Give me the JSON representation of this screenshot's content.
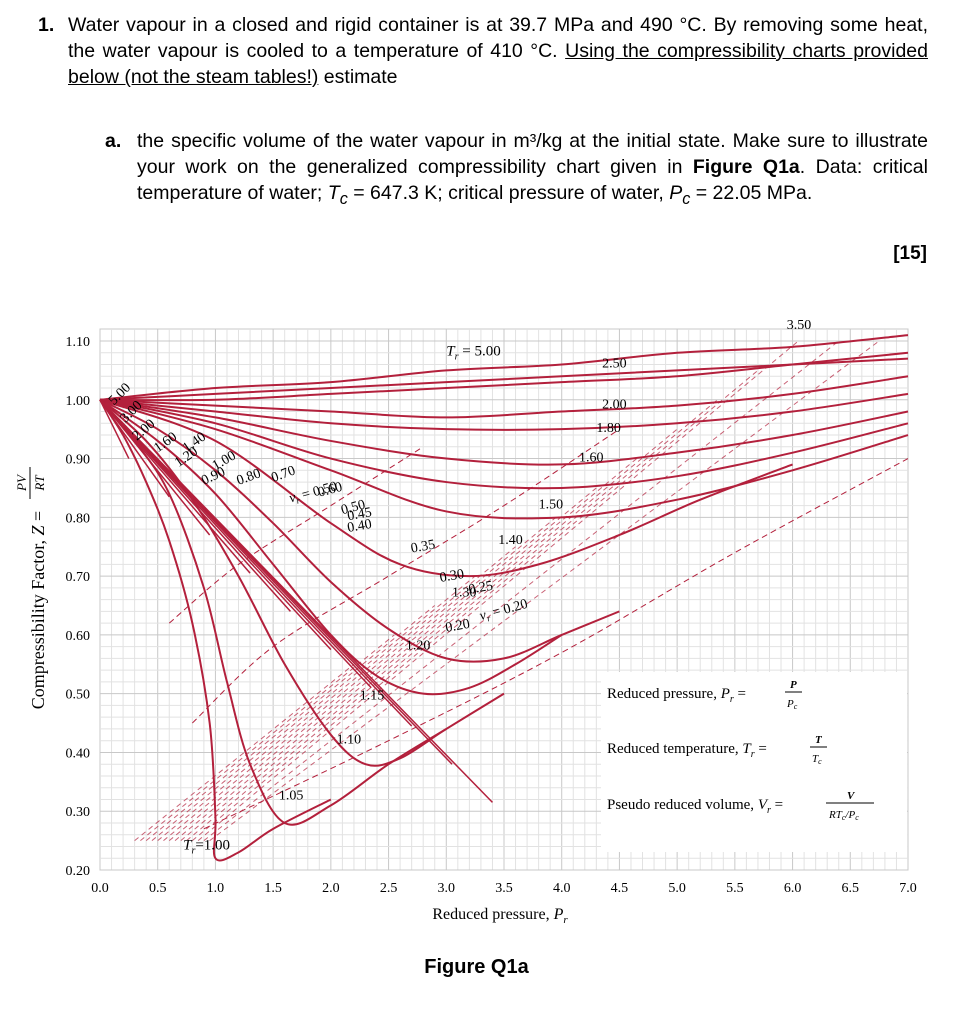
{
  "question": {
    "number": "1.",
    "text_a": "Water vapour in a closed and rigid container is at 39.7 MPa and 490 °C. By removing some heat, the water vapour is cooled to a temperature of 410 °C. ",
    "underlined": "Using the compressibility charts provided below (not the steam tables!)",
    "text_b": " estimate"
  },
  "subquestion": {
    "label": "a.",
    "text_1": "the specific volume of the water vapour in m³/kg at the initial state. Make sure to illustrate your work on the generalized compressibility chart given in ",
    "bold_ref": "Figure Q1a",
    "text_2": ". Data: critical temperature of water; ",
    "tc_symbol": "T",
    "tc_sub": "c",
    "tc_value": " = 647.3 K; critical pressure of water, ",
    "pc_symbol": "P",
    "pc_sub": "c",
    "pc_value": " = 22.05 MPa."
  },
  "marks": "[15]",
  "figure_caption": "Figure Q1a",
  "colors": {
    "curve": "#b3203c",
    "grid": "#c8c8c8",
    "grid_minor": "#e2e2e2",
    "text": "#000000"
  },
  "chart_data": {
    "type": "line",
    "xlabel": "Reduced pressure, Pr",
    "ylabel": "Compressibility Factor, Z = PV/RT",
    "xlim": [
      0.0,
      7.0
    ],
    "ylim": [
      0.2,
      1.1
    ],
    "xticks": [
      "0.0",
      "0.5",
      "1.0",
      "1.5",
      "2.0",
      "2.5",
      "3.0",
      "3.5",
      "4.0",
      "4.5",
      "5.0",
      "5.5",
      "6.0",
      "6.5",
      "7.0"
    ],
    "yticks": [
      "0.20",
      "0.30",
      "0.40",
      "0.50",
      "0.60",
      "0.70",
      "0.80",
      "0.90",
      "1.00",
      "1.10"
    ],
    "isotherm_series": [
      {
        "name": "Tr = 1.00",
        "x": [
          0,
          0.2,
          0.4,
          0.6,
          0.8,
          0.95,
          1.0,
          1.0,
          1.2,
          1.5,
          2.0
        ],
        "y": [
          1.0,
          0.94,
          0.86,
          0.76,
          0.62,
          0.45,
          0.29,
          0.22,
          0.23,
          0.27,
          0.32
        ]
      },
      {
        "name": "1.05",
        "x": [
          0,
          0.3,
          0.6,
          0.9,
          1.1,
          1.3,
          1.6,
          2.0,
          2.5,
          3.0
        ],
        "y": [
          1.0,
          0.93,
          0.84,
          0.68,
          0.52,
          0.38,
          0.28,
          0.31,
          0.38,
          0.44
        ]
      },
      {
        "name": "1.10",
        "x": [
          0,
          0.4,
          0.8,
          1.2,
          1.6,
          2.0,
          2.3,
          2.6,
          3.0,
          3.5
        ],
        "y": [
          1.0,
          0.93,
          0.83,
          0.7,
          0.55,
          0.43,
          0.38,
          0.39,
          0.44,
          0.5
        ]
      },
      {
        "name": "1.15",
        "x": [
          0,
          0.5,
          1.0,
          1.5,
          2.0,
          2.4,
          2.8,
          3.2,
          3.6,
          4.0
        ],
        "y": [
          1.0,
          0.93,
          0.84,
          0.72,
          0.6,
          0.53,
          0.5,
          0.51,
          0.55,
          0.6
        ]
      },
      {
        "name": "1.20",
        "x": [
          0,
          0.5,
          1.0,
          1.5,
          2.0,
          2.5,
          3.0,
          3.5,
          4.0,
          4.5
        ],
        "y": [
          1.0,
          0.95,
          0.88,
          0.79,
          0.69,
          0.61,
          0.56,
          0.56,
          0.6,
          0.64
        ]
      },
      {
        "name": "1.30",
        "x": [
          0,
          1.0,
          2.0,
          2.6,
          3.2,
          3.8,
          4.5,
          5.2,
          6.0
        ],
        "y": [
          1.0,
          0.93,
          0.79,
          0.72,
          0.7,
          0.72,
          0.77,
          0.83,
          0.89
        ]
      },
      {
        "name": "1.40",
        "x": [
          0,
          1.0,
          2.0,
          3.0,
          4.0,
          5.0,
          6.0,
          7.0
        ],
        "y": [
          1.0,
          0.95,
          0.88,
          0.81,
          0.8,
          0.83,
          0.88,
          0.94
        ]
      },
      {
        "name": "1.50",
        "x": [
          0,
          1.0,
          2.0,
          3.0,
          4.0,
          5.0,
          6.0,
          7.0
        ],
        "y": [
          1.0,
          0.96,
          0.9,
          0.86,
          0.85,
          0.87,
          0.91,
          0.96
        ]
      },
      {
        "name": "1.60",
        "x": [
          0,
          1.0,
          2.0,
          3.0,
          4.0,
          5.0,
          6.0,
          7.0
        ],
        "y": [
          1.0,
          0.97,
          0.93,
          0.9,
          0.89,
          0.91,
          0.94,
          0.98
        ]
      },
      {
        "name": "1.80",
        "x": [
          0,
          1.0,
          2.0,
          3.0,
          4.0,
          5.0,
          6.0,
          7.0
        ],
        "y": [
          1.0,
          0.98,
          0.96,
          0.95,
          0.95,
          0.96,
          0.98,
          1.01
        ]
      },
      {
        "name": "2.00",
        "x": [
          0,
          1.0,
          2.0,
          3.0,
          4.0,
          5.0,
          6.0,
          7.0
        ],
        "y": [
          1.0,
          0.99,
          0.98,
          0.97,
          0.98,
          0.99,
          1.01,
          1.04
        ]
      },
      {
        "name": "2.50",
        "x": [
          0,
          1.0,
          2.0,
          3.0,
          4.0,
          5.0,
          6.0,
          7.0
        ],
        "y": [
          1.0,
          1.0,
          1.01,
          1.02,
          1.03,
          1.04,
          1.06,
          1.08
        ]
      },
      {
        "name": "3.50",
        "x": [
          0,
          1.0,
          2.0,
          3.0,
          4.0,
          5.0,
          6.0,
          7.0
        ],
        "y": [
          1.0,
          1.02,
          1.03,
          1.05,
          1.06,
          1.08,
          1.09,
          1.11
        ]
      },
      {
        "name": "Tr = 5.00",
        "x": [
          0,
          1.0,
          2.0,
          3.0,
          4.0,
          5.0,
          6.0,
          7.0
        ],
        "y": [
          1.0,
          1.01,
          1.02,
          1.03,
          1.04,
          1.05,
          1.06,
          1.07
        ]
      }
    ],
    "volume_series": [
      {
        "name": "0.20",
        "x": [
          0.9,
          2.5,
          4.0,
          5.5,
          7.0
        ],
        "y": [
          0.27,
          0.42,
          0.57,
          0.74,
          0.9
        ]
      },
      {
        "name": "0.40",
        "x": [
          0.8,
          1.5,
          2.5,
          3.5,
          4.5
        ],
        "y": [
          0.45,
          0.58,
          0.7,
          0.82,
          0.95
        ]
      },
      {
        "name": "0.60",
        "x": [
          0.6,
          1.2,
          2.0,
          2.8
        ],
        "y": [
          0.62,
          0.72,
          0.82,
          0.92
        ]
      }
    ],
    "annotations": {
      "tr_labels": [
        "5.00",
        "3.00",
        "2.00",
        "1.60",
        "1.40",
        "1.20",
        "1.00",
        "0.90",
        "0.80",
        "0.70",
        "0.60",
        "0.50",
        "0.45",
        "0.40",
        "0.35",
        "0.30",
        "0.25",
        "0.20",
        "1.05",
        "1.10",
        "1.15",
        "1.20",
        "1.30",
        "1.40",
        "1.50",
        "1.60",
        "1.80",
        "2.00",
        "2.50",
        "3.50"
      ],
      "tr_prefix": "T",
      "tr_sub": "r",
      "tr_eq": " = 5.00",
      "tr_bottom": "=1.00",
      "vr_prefix": "v",
      "vr_sub": "r",
      "vr_eq_050": " = 0.50",
      "vr_eq_020": " = 0.20"
    },
    "legend": {
      "line1": "Reduced pressure, Pr = P/Pc",
      "line2": "Reduced temperature, Tr = T/Tc",
      "line3": "Pseudo reduced volume, Vr = V/(RTc/Pc)",
      "t1_main": "Reduced pressure, ",
      "t1_sym": "P",
      "t1_sub": "r",
      "t1_num": "P",
      "t1_den": "P",
      "t1_den_sub": "c",
      "t2_main": "Reduced temperature, ",
      "t2_sym": "T",
      "t2_sub": "r",
      "t2_num": "T",
      "t2_den": "T",
      "t2_den_sub": "c",
      "t3_main": "Pseudo reduced volume, ",
      "t3_sym": "V",
      "t3_sub": "r",
      "t3_num": "V",
      "t3_den": "RT",
      "t3_den_sub": "c",
      "t3_den_tail": "/P",
      "t3_den_tail_sub": "c"
    },
    "ylabel_parts": {
      "main": "Compressibility Factor, ",
      "z": "Z",
      "eq": " = ",
      "num": "PV",
      "den": "RT"
    },
    "xlabel_parts": {
      "main": "Reduced pressure, ",
      "sym": "P",
      "sub": "r"
    }
  }
}
